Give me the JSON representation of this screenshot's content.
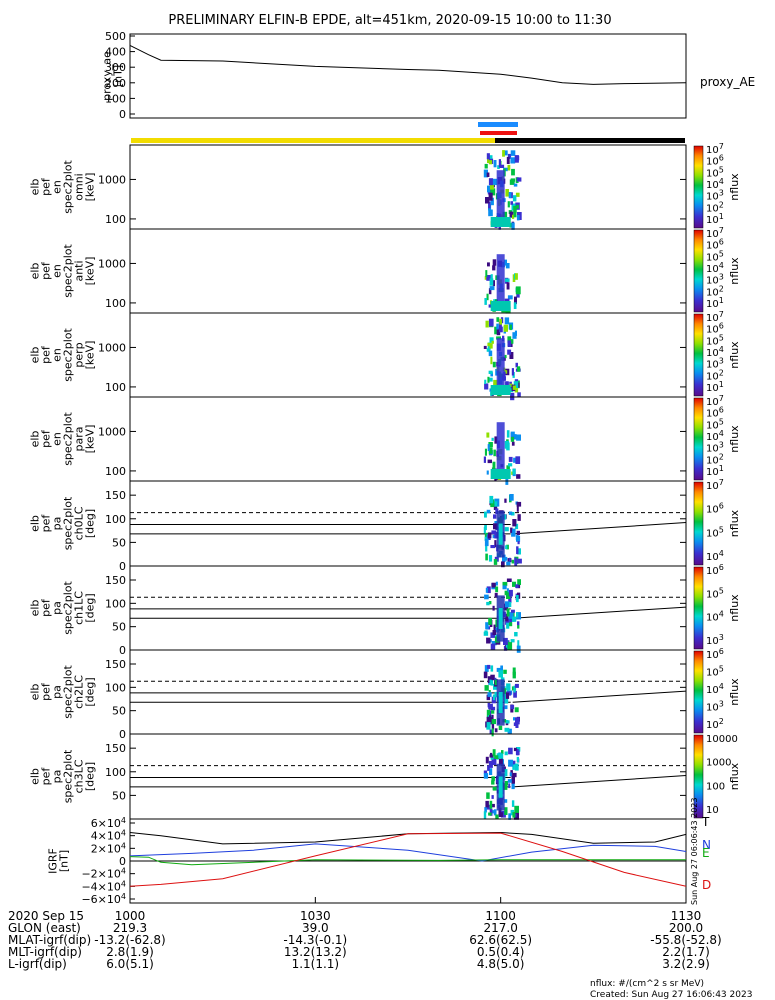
{
  "title": "PRELIMINARY ELFIN-B EPDE, alt=451km, 2020-09-15 10:00 to 11:30",
  "panels": [
    {
      "id": "ae",
      "ylabel": [
        "proxy_ae",
        "[nT]"
      ],
      "ticks": [
        "500",
        "400",
        "300",
        "200",
        "100",
        "0"
      ],
      "side_label": "proxy_AE"
    },
    {
      "id": "omni",
      "ylabel": [
        "elb",
        "pef",
        "en",
        "spec2plot",
        "omni",
        "[keV]"
      ],
      "ticks": [
        "1000",
        "100"
      ],
      "cbar_ticks": [
        "10^7",
        "10^6",
        "10^5",
        "10^4",
        "10^3",
        "10^2",
        "10^1"
      ],
      "cbar_label": "nflux"
    },
    {
      "id": "anti",
      "ylabel": [
        "elb",
        "pef",
        "en",
        "spec2plot",
        "anti",
        "[keV]"
      ],
      "ticks": [
        "1000",
        "100"
      ],
      "cbar_ticks": [
        "10^7",
        "10^6",
        "10^5",
        "10^4",
        "10^3",
        "10^2",
        "10^1"
      ],
      "cbar_label": "nflux"
    },
    {
      "id": "perp",
      "ylabel": [
        "elb",
        "pef",
        "en",
        "spec2plot",
        "perp",
        "[keV]"
      ],
      "ticks": [
        "1000",
        "100"
      ],
      "cbar_ticks": [
        "10^7",
        "10^6",
        "10^5",
        "10^4",
        "10^3",
        "10^2",
        "10^1"
      ],
      "cbar_label": "nflux"
    },
    {
      "id": "para",
      "ylabel": [
        "elb",
        "pef",
        "en",
        "spec2plot",
        "para",
        "[keV]"
      ],
      "ticks": [
        "1000",
        "100"
      ],
      "cbar_ticks": [
        "10^7",
        "10^6",
        "10^5",
        "10^4",
        "10^3",
        "10^2",
        "10^1"
      ],
      "cbar_label": "nflux"
    },
    {
      "id": "ch0",
      "ylabel": [
        "elb",
        "pef",
        "pa",
        "spec2plot",
        "ch0LC",
        "[deg]"
      ],
      "ticks": [
        "150",
        "100",
        "50",
        "0"
      ],
      "cbar_ticks": [
        "10^7",
        "10^6",
        "10^5",
        "10^4"
      ],
      "cbar_label": "nflux"
    },
    {
      "id": "ch1",
      "ylabel": [
        "elb",
        "pef",
        "pa",
        "spec2plot",
        "ch1LC",
        "[deg]"
      ],
      "ticks": [
        "150",
        "100",
        "50",
        "0"
      ],
      "cbar_ticks": [
        "10^6",
        "10^5",
        "10^4",
        "10^3"
      ],
      "cbar_label": "nflux"
    },
    {
      "id": "ch2",
      "ylabel": [
        "elb",
        "pef",
        "pa",
        "spec2plot",
        "ch2LC",
        "[deg]"
      ],
      "ticks": [
        "150",
        "100",
        "50",
        "0"
      ],
      "cbar_ticks": [
        "10^6",
        "10^5",
        "10^4",
        "10^3",
        "10^2"
      ],
      "cbar_label": "nflux"
    },
    {
      "id": "ch3",
      "ylabel": [
        "elb",
        "pef",
        "pa",
        "spec2plot",
        "ch3LC",
        "[deg]"
      ],
      "ticks": [
        "150",
        "100",
        "50"
      ],
      "cbar_ticks": [
        "10000",
        "1000",
        "100",
        "10"
      ],
      "cbar_label": "nflux"
    },
    {
      "id": "igrf",
      "ylabel": [
        "IGRF",
        "[nT]"
      ],
      "ticks": [
        "6×10^4",
        "4×10^4",
        "2×10^4",
        "0",
        "−2×10^4",
        "−4×10^4",
        "−6×10^4"
      ],
      "legend": [
        "T",
        "N",
        "E",
        "D"
      ]
    }
  ],
  "bottom_table": {
    "rows": [
      [
        "2020 Sep 15",
        "1000",
        "1030",
        "1100",
        "1130"
      ],
      [
        "GLON (east)",
        "219.3",
        "39.0",
        "217.0",
        "200.0"
      ],
      [
        "MLAT-igrf(dip)",
        "-13.2(-62.8)",
        "-14.3(-0.1)",
        "62.6(62.5)",
        "-55.8(-52.8)"
      ],
      [
        "MLT-igrf(dip)",
        "2.8(1.9)",
        "13.2(13.2)",
        "0.5(0.4)",
        "2.2(1.7)"
      ],
      [
        "L-igrf(dip)",
        "6.0(5.1)",
        "1.1(1.1)",
        "4.8(5.0)",
        "3.2(2.9)"
      ]
    ]
  },
  "footer": {
    "units": "nflux: #/(cm^2 s sr MeV)",
    "created": "Created: Sun Aug 27 16:06:43 2023",
    "stamp": "Sun Aug 27 06:06:43 2023"
  },
  "chart_data": {
    "type": "line",
    "title": "PRELIMINARY ELFIN-B EPDE, alt=451km, 2020-09-15 10:00 to 11:30",
    "x_ticks": [
      "1000",
      "1030",
      "1100",
      "1130"
    ],
    "xlim": [
      "10:00",
      "11:30"
    ],
    "proxy_ae": {
      "x": [
        "10:00",
        "10:03",
        "10:05",
        "10:15",
        "10:30",
        "10:45",
        "10:50",
        "11:00",
        "11:05",
        "11:10",
        "11:15",
        "11:20",
        "11:30"
      ],
      "y": [
        440,
        380,
        345,
        340,
        305,
        285,
        280,
        255,
        230,
        200,
        190,
        195,
        200
      ],
      "ylim": [
        0,
        500
      ]
    },
    "igrf": {
      "ylim": [
        -60000,
        60000
      ],
      "series": [
        {
          "name": "T",
          "color": "#000000",
          "x": [
            "10:00",
            "10:05",
            "10:15",
            "10:30",
            "10:45",
            "11:00",
            "11:05",
            "11:15",
            "11:25",
            "11:30"
          ],
          "y": [
            45000,
            40000,
            27000,
            30000,
            43000,
            45000,
            42000,
            28000,
            30000,
            42000
          ]
        },
        {
          "name": "N",
          "color": "#1f3fdd",
          "x": [
            "10:00",
            "10:10",
            "10:20",
            "10:30",
            "10:45",
            "10:57",
            "11:05",
            "11:15",
            "11:25",
            "11:30"
          ],
          "y": [
            8000,
            12000,
            17000,
            27000,
            17000,
            0,
            14000,
            25000,
            23000,
            15000
          ]
        },
        {
          "name": "E",
          "color": "#11aa11",
          "x": [
            "10:00",
            "10:03",
            "10:05",
            "10:10",
            "10:30",
            "10:50",
            "11:00",
            "11:10",
            "11:20",
            "11:30"
          ],
          "y": [
            7000,
            6000,
            -2000,
            -6000,
            2000,
            1000,
            2000,
            2000,
            2000,
            2000
          ]
        },
        {
          "name": "D",
          "color": "#dd1111",
          "x": [
            "10:00",
            "10:05",
            "10:15",
            "10:30",
            "10:45",
            "11:00",
            "11:10",
            "11:20",
            "11:30"
          ],
          "y": [
            -40000,
            -37000,
            -28000,
            8000,
            43000,
            44000,
            15000,
            -18000,
            -40000
          ]
        }
      ]
    },
    "pitch_angle_lines": {
      "dashed": 113,
      "solid": [
        88,
        68
      ]
    },
    "status_bars": {
      "segments": [
        "yellow 10:00-11:00",
        "black 11:00-11:30"
      ],
      "marks": [
        "blue",
        "red"
      ]
    }
  }
}
